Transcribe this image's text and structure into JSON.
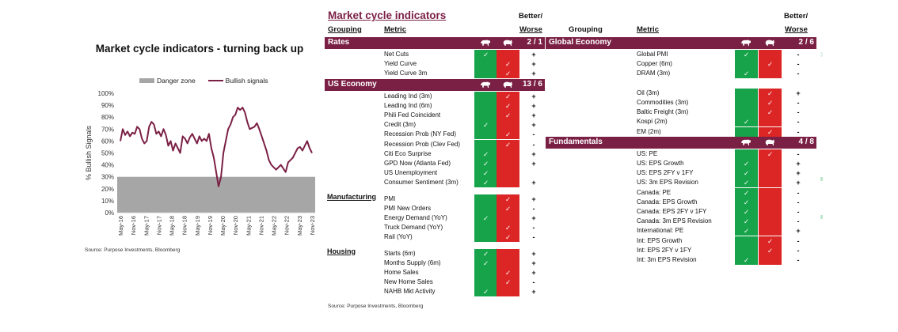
{
  "chart_data": {
    "type": "line",
    "title": "Market cycle indicators - turning back up",
    "ylabel": "% Bullish Signals",
    "ylim": [
      0,
      100
    ],
    "yticks": [
      "0%",
      "10%",
      "20%",
      "30%",
      "40%",
      "50%",
      "60%",
      "70%",
      "80%",
      "90%",
      "100%"
    ],
    "xticks": [
      "May-16",
      "Nov-16",
      "May-17",
      "Nov-17",
      "May-18",
      "Nov-18",
      "May-19",
      "Nov-19",
      "May-20",
      "Nov-20",
      "May-21",
      "Nov-21",
      "May-22",
      "Nov-22",
      "May-23",
      "Nov-23"
    ],
    "legend": [
      "Danger zone",
      "Bullish signals"
    ],
    "legend_position": "top",
    "series": [
      {
        "name": "Danger zone",
        "kind": "area",
        "color": "#a6a6a6",
        "value": 30
      },
      {
        "name": "Bullish signals",
        "kind": "line",
        "color": "#7b2045",
        "values": [
          60,
          70,
          65,
          68,
          64,
          67,
          66,
          72,
          70,
          62,
          58,
          60,
          72,
          76,
          74,
          66,
          68,
          64,
          70,
          65,
          56,
          60,
          52,
          58,
          54,
          50,
          64,
          62,
          58,
          63,
          66,
          62,
          58,
          64,
          60,
          62,
          60,
          66,
          54,
          46,
          34,
          22,
          30,
          50,
          60,
          70,
          74,
          80,
          82,
          88,
          86,
          88,
          84,
          76,
          70,
          71,
          72,
          75,
          70,
          64,
          58,
          52,
          44,
          40,
          38,
          36,
          38,
          40,
          37,
          34,
          42,
          44,
          46,
          50,
          54,
          55,
          52,
          56,
          60,
          54,
          50
        ]
      }
    ],
    "source": "Source: Purpose Investments, Bloomberg"
  },
  "table": {
    "title": "Market cycle indicators",
    "col_grouping": "Grouping",
    "col_metric": "Metric",
    "col_better_top": "Better/",
    "col_better_bottom": "Worse",
    "source": "Source: Purpose Investments, Bloomberg",
    "bull_icon": "bull-icon",
    "bear_icon": "bear-icon",
    "colors": {
      "bar": "#7b2045",
      "green": "#16a34a",
      "red": "#dc2626"
    },
    "left": [
      {
        "group": "Rates",
        "score": "2 / 1",
        "style": "bar",
        "rows": [
          {
            "metric": "Net Cuts",
            "bull": true,
            "bear": false,
            "bw": "+"
          },
          {
            "metric": "Yield Curve",
            "bull": false,
            "bear": true,
            "bw": "+"
          },
          {
            "metric": "Yield Curve 3m",
            "bull": false,
            "bear": true,
            "bw": "+"
          }
        ]
      },
      {
        "group": "US Economy",
        "score": "13 / 6",
        "style": "bar",
        "rows": [
          {
            "metric": "Leading Ind (3m)",
            "bull": false,
            "bear": true,
            "bw": "+"
          },
          {
            "metric": "Leading Ind (6m)",
            "bull": false,
            "bear": true,
            "bw": "+"
          },
          {
            "metric": "Phili Fed Coincident",
            "bull": false,
            "bear": true,
            "bw": "+"
          },
          {
            "metric": "Credit (3m)",
            "bull": true,
            "bear": false,
            "bw": "+"
          },
          {
            "metric": "Recession Prob (NY Fed)",
            "bull": false,
            "bear": true,
            "bw": "-"
          },
          {
            "metric": "Recession Prob (Clev Fed)",
            "bull": false,
            "bear": true,
            "bw": "-"
          },
          {
            "metric": "Citi Eco Surprise",
            "bull": true,
            "bear": false,
            "bw": "+"
          },
          {
            "metric": "GPD Now (Atlanta Fed)",
            "bull": true,
            "bear": false,
            "bw": "+"
          },
          {
            "metric": "US Unemployment",
            "bull": true,
            "bear": false,
            "bw": ""
          },
          {
            "metric": "Consumer Sentiment (3m)",
            "bull": true,
            "bear": false,
            "bw": "+"
          }
        ]
      },
      {
        "group": "Manufacturing",
        "score": "",
        "style": "label",
        "rows": [
          {
            "metric": "PMI",
            "bull": false,
            "bear": true,
            "bw": "+"
          },
          {
            "metric": "PMI New Orders",
            "bull": false,
            "bear": true,
            "bw": "-"
          },
          {
            "metric": "Energy Demand (YoY)",
            "bull": true,
            "bear": false,
            "bw": "+"
          },
          {
            "metric": "Truck Demand (YoY)",
            "bull": false,
            "bear": true,
            "bw": "-"
          },
          {
            "metric": "Rail (YoY)",
            "bull": false,
            "bear": true,
            "bw": "-"
          }
        ]
      },
      {
        "group": "Housing",
        "score": "",
        "style": "label",
        "rows": [
          {
            "metric": "Starts (6m)",
            "bull": true,
            "bear": false,
            "bw": "+"
          },
          {
            "metric": "Months Supply (6m)",
            "bull": true,
            "bear": false,
            "bw": "+"
          },
          {
            "metric": "Home Sales",
            "bull": false,
            "bear": true,
            "bw": "+"
          },
          {
            "metric": "New Home Sales",
            "bull": false,
            "bear": true,
            "bw": "-"
          },
          {
            "metric": "NAHB Mkt Activity",
            "bull": true,
            "bear": false,
            "bw": "+"
          }
        ]
      }
    ],
    "right": [
      {
        "group": "Global Economy",
        "score": "2 / 6",
        "style": "bar",
        "rows": [
          {
            "metric": "Global PMI",
            "bull": true,
            "bear": false,
            "bw": "-"
          },
          {
            "metric": "Copper (6m)",
            "bull": false,
            "bear": true,
            "bw": "-"
          },
          {
            "metric": "DRAM (3m)",
            "bull": true,
            "bear": false,
            "bw": "-"
          },
          {
            "metric": "",
            "bull": null,
            "bear": null,
            "bw": ""
          },
          {
            "metric": "Oil (3m)",
            "bull": false,
            "bear": true,
            "bw": "+"
          },
          {
            "metric": "Commodities (3m)",
            "bull": false,
            "bear": true,
            "bw": "-"
          },
          {
            "metric": "Baltic Freight (3m)",
            "bull": false,
            "bear": true,
            "bw": "-"
          },
          {
            "metric": "Kospi (2m)",
            "bull": true,
            "bear": false,
            "bw": "-"
          },
          {
            "metric": "EM (2m)",
            "bull": false,
            "bear": true,
            "bw": "-"
          }
        ]
      },
      {
        "group": "Fundamentals",
        "score": "4 / 8",
        "style": "bar",
        "rows": [
          {
            "metric": "US: PE",
            "bull": false,
            "bear": true,
            "bw": "-"
          },
          {
            "metric": "US: EPS Growth",
            "bull": true,
            "bear": false,
            "bw": "+"
          },
          {
            "metric": "US: EPS 2FY v 1FY",
            "bull": true,
            "bear": false,
            "bw": "+"
          },
          {
            "metric": "US: 3m EPS Revision",
            "bull": true,
            "bear": false,
            "bw": "+"
          },
          {
            "metric": "Canada: PE",
            "bull": true,
            "bear": false,
            "bw": "-"
          },
          {
            "metric": "Canada: EPS Growth",
            "bull": true,
            "bear": false,
            "bw": "-"
          },
          {
            "metric": "Canada: EPS 2FY v 1FY",
            "bull": true,
            "bear": false,
            "bw": "-"
          },
          {
            "metric": "Canada: 3m EPS Revision",
            "bull": true,
            "bear": false,
            "bw": "-"
          },
          {
            "metric": "International: PE",
            "bull": true,
            "bear": false,
            "bw": "+"
          },
          {
            "metric": "Int: EPS Growth",
            "bull": false,
            "bear": true,
            "bw": "-"
          },
          {
            "metric": "Int: EPS 2FY v 1FY",
            "bull": false,
            "bear": true,
            "bw": "-"
          },
          {
            "metric": "Int: 3m EPS Revision",
            "bull": true,
            "bear": false,
            "bw": "-"
          }
        ]
      }
    ]
  }
}
